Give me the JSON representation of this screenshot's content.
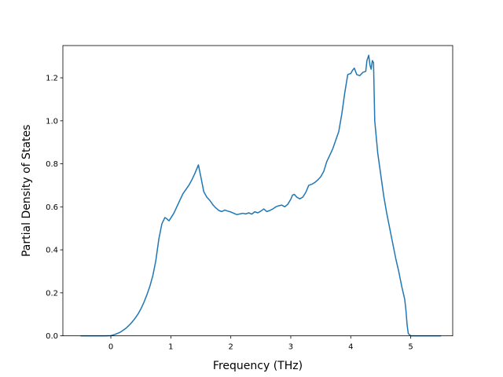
{
  "chart_data": {
    "type": "line",
    "title": "",
    "xlabel": "Frequency (THz)",
    "ylabel": "Partial Density of States",
    "xlim": [
      -0.8,
      5.7
    ],
    "ylim": [
      0.0,
      1.35
    ],
    "xticks": [
      0,
      1,
      2,
      3,
      4,
      5
    ],
    "xtick_labels": [
      "0",
      "1",
      "2",
      "3",
      "4",
      "5"
    ],
    "yticks": [
      0.0,
      0.2,
      0.4,
      0.6,
      0.8,
      1.0,
      1.2
    ],
    "ytick_labels": [
      "0.0",
      "0.2",
      "0.4",
      "0.6",
      "0.8",
      "1.0",
      "1.2"
    ],
    "grid": false,
    "legend": "none",
    "series": [
      {
        "color": "#1f77b4",
        "x": [
          -0.5,
          -0.3,
          -0.1,
          0.0,
          0.05,
          0.1,
          0.15,
          0.2,
          0.25,
          0.3,
          0.35,
          0.4,
          0.45,
          0.5,
          0.55,
          0.6,
          0.65,
          0.7,
          0.75,
          0.8,
          0.85,
          0.9,
          0.93,
          0.97,
          1.0,
          1.05,
          1.1,
          1.15,
          1.2,
          1.25,
          1.3,
          1.35,
          1.4,
          1.43,
          1.46,
          1.5,
          1.55,
          1.6,
          1.65,
          1.7,
          1.75,
          1.8,
          1.85,
          1.9,
          1.95,
          2.0,
          2.05,
          2.1,
          2.15,
          2.2,
          2.25,
          2.3,
          2.35,
          2.4,
          2.45,
          2.5,
          2.55,
          2.6,
          2.65,
          2.7,
          2.75,
          2.8,
          2.85,
          2.9,
          2.95,
          3.0,
          3.03,
          3.06,
          3.1,
          3.15,
          3.2,
          3.25,
          3.3,
          3.35,
          3.4,
          3.45,
          3.5,
          3.55,
          3.6,
          3.65,
          3.7,
          3.75,
          3.8,
          3.85,
          3.9,
          3.95,
          4.0,
          4.03,
          4.06,
          4.1,
          4.15,
          4.2,
          4.25,
          4.27,
          4.3,
          4.32,
          4.34,
          4.36,
          4.38,
          4.4,
          4.45,
          4.5,
          4.55,
          4.6,
          4.65,
          4.7,
          4.75,
          4.8,
          4.85,
          4.9,
          4.92,
          4.94,
          4.96,
          5.0,
          5.1,
          5.3,
          5.5
        ],
        "y": [
          0.0,
          0.0,
          0.0,
          0.001,
          0.005,
          0.01,
          0.016,
          0.025,
          0.035,
          0.048,
          0.063,
          0.08,
          0.1,
          0.125,
          0.155,
          0.19,
          0.23,
          0.28,
          0.35,
          0.45,
          0.52,
          0.55,
          0.545,
          0.535,
          0.548,
          0.57,
          0.6,
          0.63,
          0.66,
          0.68,
          0.7,
          0.725,
          0.755,
          0.775,
          0.795,
          0.74,
          0.67,
          0.645,
          0.63,
          0.61,
          0.595,
          0.583,
          0.578,
          0.585,
          0.58,
          0.576,
          0.57,
          0.564,
          0.567,
          0.57,
          0.567,
          0.572,
          0.566,
          0.577,
          0.572,
          0.58,
          0.59,
          0.578,
          0.583,
          0.59,
          0.6,
          0.605,
          0.608,
          0.6,
          0.612,
          0.635,
          0.655,
          0.658,
          0.645,
          0.637,
          0.645,
          0.667,
          0.7,
          0.705,
          0.713,
          0.725,
          0.74,
          0.765,
          0.81,
          0.84,
          0.87,
          0.91,
          0.95,
          1.03,
          1.13,
          1.215,
          1.22,
          1.235,
          1.245,
          1.215,
          1.21,
          1.225,
          1.23,
          1.28,
          1.305,
          1.26,
          1.24,
          1.28,
          1.27,
          1.0,
          0.85,
          0.75,
          0.65,
          0.57,
          0.5,
          0.43,
          0.36,
          0.3,
          0.23,
          0.17,
          0.12,
          0.05,
          0.01,
          0.0,
          0.0,
          0.0,
          0.0
        ]
      }
    ]
  }
}
